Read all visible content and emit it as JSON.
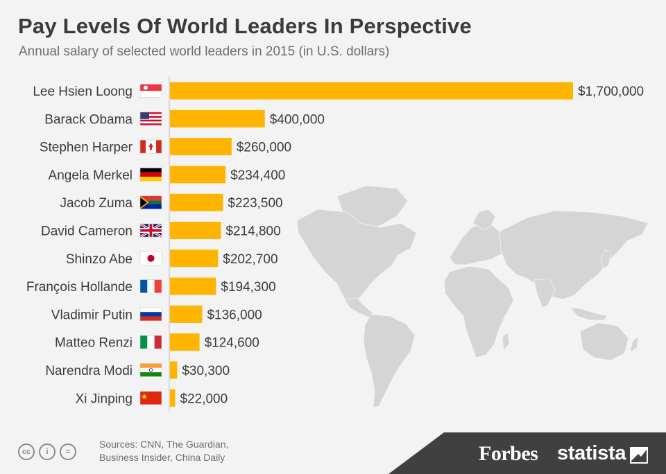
{
  "header": {
    "title": "Pay Levels Of World Leaders In Perspective",
    "subtitle": "Annual salary of selected world leaders in 2015 (in U.S. dollars)"
  },
  "chart_data": {
    "type": "bar",
    "orientation": "horizontal",
    "title": "Pay Levels Of World Leaders In Perspective",
    "subtitle": "Annual salary of selected world leaders in 2015 (in U.S. dollars)",
    "categories": [
      "Lee Hsien Loong",
      "Barack Obama",
      "Stephen Harper",
      "Angela Merkel",
      "Jacob Zuma",
      "David Cameron",
      "Shinzo Abe",
      "François Hollande",
      "Vladimir Putin",
      "Matteo Renzi",
      "Narendra Modi",
      "Xi Jinping"
    ],
    "values": [
      1700000,
      400000,
      260000,
      234400,
      223500,
      214800,
      202700,
      194300,
      136000,
      124600,
      30300,
      22000
    ],
    "labels": [
      "$1,700,000",
      "$400,000",
      "$260,000",
      "$234,400",
      "$223,500",
      "$214,800",
      "$202,700",
      "$194,300",
      "$136,000",
      "$124,600",
      "$30,300",
      "$22,000"
    ],
    "flags": [
      "singapore-flag",
      "usa-flag",
      "canada-flag",
      "germany-flag",
      "south-africa-flag",
      "uk-flag",
      "japan-flag",
      "france-flag",
      "russia-flag",
      "italy-flag",
      "india-flag",
      "china-flag"
    ],
    "xlim": [
      0,
      1700000
    ],
    "bar_color": "#ffb400",
    "xlabel": "",
    "ylabel": ""
  },
  "footer": {
    "source_lines": [
      "Sources: CNN, The Guardian,",
      "Business Insider, China Daily"
    ],
    "forbes": "Forbes",
    "statista": "statista"
  },
  "colors": {
    "background": "#f3f3f3",
    "title": "#3b3b3b",
    "subtitle": "#6e6e6e",
    "bar": "#ffb400",
    "map": "#d5d5d5",
    "footer_band": "#404040"
  }
}
